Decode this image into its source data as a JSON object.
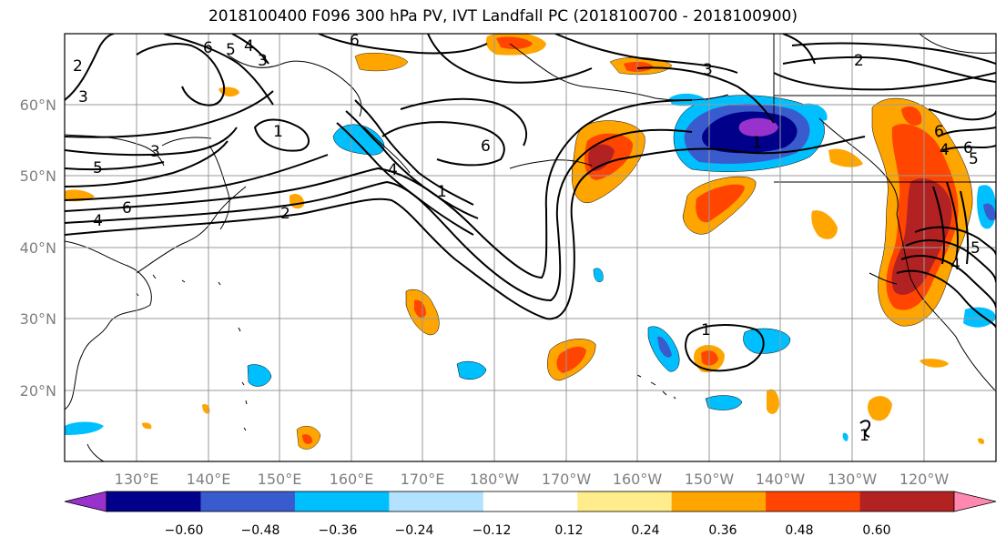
{
  "title": "2018100400 F096 300 hPa PV, IVT Landfall PC (2018100700 - 2018100900)",
  "map": {
    "lon_labels": [
      "130°E",
      "140°E",
      "150°E",
      "160°E",
      "170°E",
      "180°W",
      "170°W",
      "160°W",
      "150°W",
      "140°W",
      "130°W",
      "120°W"
    ],
    "lat_labels": [
      "60°N",
      "50°N",
      "40°N",
      "30°N",
      "20°N"
    ],
    "contour_labels": [
      "6",
      "5",
      "4",
      "3",
      "2",
      "3",
      "6",
      "3",
      "1",
      "3",
      "6",
      "5",
      "4",
      "2",
      "4",
      "6",
      "1",
      "1",
      "2",
      "6",
      "1",
      "5",
      "4",
      "6",
      "5",
      "4",
      "1"
    ],
    "gridlines": true
  },
  "colorbar": {
    "ticks": [
      "−0.60",
      "−0.48",
      "−0.36",
      "−0.24",
      "−0.12",
      "0.12",
      "0.24",
      "0.36",
      "0.48",
      "0.60"
    ],
    "bins": [
      {
        "color": "#9932CC"
      },
      {
        "color": "#00008B"
      },
      {
        "color": "#3A5BCD"
      },
      {
        "color": "#00BFFF"
      },
      {
        "color": "#B2E2FF"
      },
      {
        "color": "#FFFFFF"
      },
      {
        "color": "#FFEC8B"
      },
      {
        "color": "#FFA500"
      },
      {
        "color": "#FF4500"
      },
      {
        "color": "#B22222"
      },
      {
        "color": "#FF88B0"
      }
    ]
  }
}
